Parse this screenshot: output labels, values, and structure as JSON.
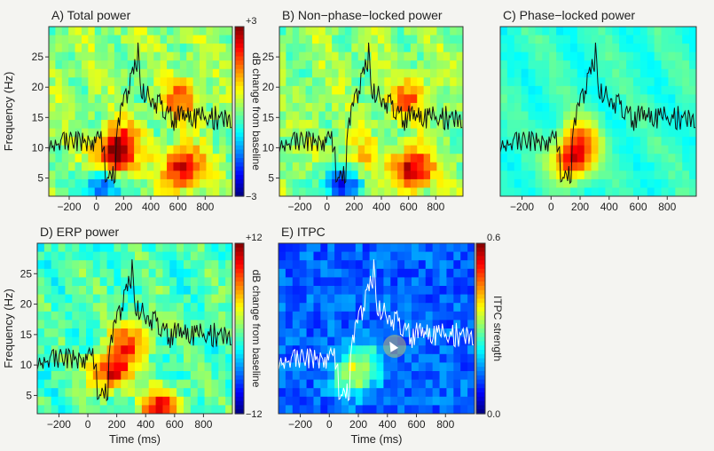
{
  "figure": {
    "background": "#f4f4f1"
  },
  "chart_data": [
    {
      "id": "A",
      "type": "heatmap",
      "title": "A)  Total power",
      "xlabel": "",
      "ylabel": "Frequency (Hz)",
      "xlim": [
        -350,
        1000
      ],
      "ylim": [
        2,
        30
      ],
      "xticks": [
        -200,
        0,
        200,
        400,
        600,
        800
      ],
      "yticks": [
        5,
        10,
        15,
        20,
        25
      ],
      "xtick_labels": [
        "−200",
        "0",
        "200",
        "400",
        "600",
        "800"
      ],
      "colorbar": {
        "min_label": "−3",
        "max_label": "+3",
        "label": "dB change from baseline",
        "colormap": "jet"
      },
      "features": [
        {
          "t": 130,
          "f": 8,
          "value": 0.9
        },
        {
          "t": 170,
          "f": 11,
          "value": 0.6
        },
        {
          "t": 640,
          "f": 6.5,
          "value": 0.95
        },
        {
          "t": 620,
          "f": 18,
          "value": 0.55
        },
        {
          "t": 50,
          "f": 4,
          "value": -0.75
        }
      ],
      "erp_trace": {
        "color": "#111111",
        "baseline_f": 11
      }
    },
    {
      "id": "B",
      "type": "heatmap",
      "title": "B)  Non−phase−locked power",
      "xlabel": "",
      "ylabel": "",
      "xlim": [
        -350,
        1000
      ],
      "ylim": [
        2,
        30
      ],
      "xticks": [
        -200,
        0,
        200,
        400,
        600,
        800
      ],
      "yticks": [
        5,
        10,
        15,
        20,
        25
      ],
      "xtick_labels": [
        "−200",
        "0",
        "200",
        "400",
        "600",
        "800"
      ],
      "features": [
        {
          "t": 630,
          "f": 6.5,
          "value": 0.95
        },
        {
          "t": 600,
          "f": 18,
          "value": 0.5
        },
        {
          "t": 100,
          "f": 4,
          "value": -0.85
        },
        {
          "t": 220,
          "f": 8,
          "value": 0.35
        }
      ],
      "erp_trace": {
        "color": "#111111",
        "baseline_f": 11
      }
    },
    {
      "id": "C",
      "type": "heatmap",
      "title": "C)  Phase−locked power",
      "xlabel": "",
      "ylabel": "",
      "xlim": [
        -350,
        1000
      ],
      "ylim": [
        2,
        30
      ],
      "xticks": [
        -200,
        0,
        200,
        400,
        600,
        800
      ],
      "yticks": [],
      "xtick_labels": [
        "−200",
        "0",
        "200",
        "400",
        "600",
        "800"
      ],
      "features": [
        {
          "t": 150,
          "f": 8,
          "value": 1.0
        },
        {
          "t": 200,
          "f": 12,
          "value": 0.55
        }
      ],
      "erp_trace": {
        "color": "#111111",
        "baseline_f": 11
      }
    },
    {
      "id": "D",
      "type": "heatmap",
      "title": "D)  ERP power",
      "xlabel": "Time (ms)",
      "ylabel": "Frequency (Hz)",
      "xlim": [
        -350,
        1000
      ],
      "ylim": [
        2,
        30
      ],
      "xticks": [
        -200,
        0,
        200,
        400,
        600,
        800
      ],
      "yticks": [
        5,
        10,
        15,
        20,
        25
      ],
      "xtick_labels": [
        "−200",
        "0",
        "200",
        "400",
        "600",
        "800"
      ],
      "colorbar": {
        "min_label": "−12",
        "max_label": "+12",
        "label": "dB change from baseline",
        "colormap": "jet"
      },
      "features": [
        {
          "t": 160,
          "f": 9,
          "value": 1.0
        },
        {
          "t": 300,
          "f": 14,
          "value": 0.7
        },
        {
          "t": 500,
          "f": 3,
          "value": 0.85
        }
      ],
      "erp_trace": {
        "color": "#111111",
        "baseline_f": 11
      }
    },
    {
      "id": "E",
      "type": "heatmap",
      "title": "E)  ITPC",
      "xlabel": "Time (ms)",
      "ylabel": "",
      "xlim": [
        -350,
        1000
      ],
      "ylim": [
        2,
        30
      ],
      "xticks": [
        -200,
        0,
        200,
        400,
        600,
        800
      ],
      "yticks": [],
      "xtick_labels": [
        "−200",
        "0",
        "200",
        "400",
        "600",
        "800"
      ],
      "colorbar": {
        "min_label": "0.0",
        "max_label": "0.6",
        "label": "ITPC strength",
        "colormap": "jet"
      },
      "features": [
        {
          "t": 160,
          "f": 8,
          "value": 0.6
        },
        {
          "t": 240,
          "f": 11,
          "value": 0.45
        }
      ],
      "erp_trace": {
        "color": "#ffffff",
        "baseline_f": 11
      }
    }
  ]
}
